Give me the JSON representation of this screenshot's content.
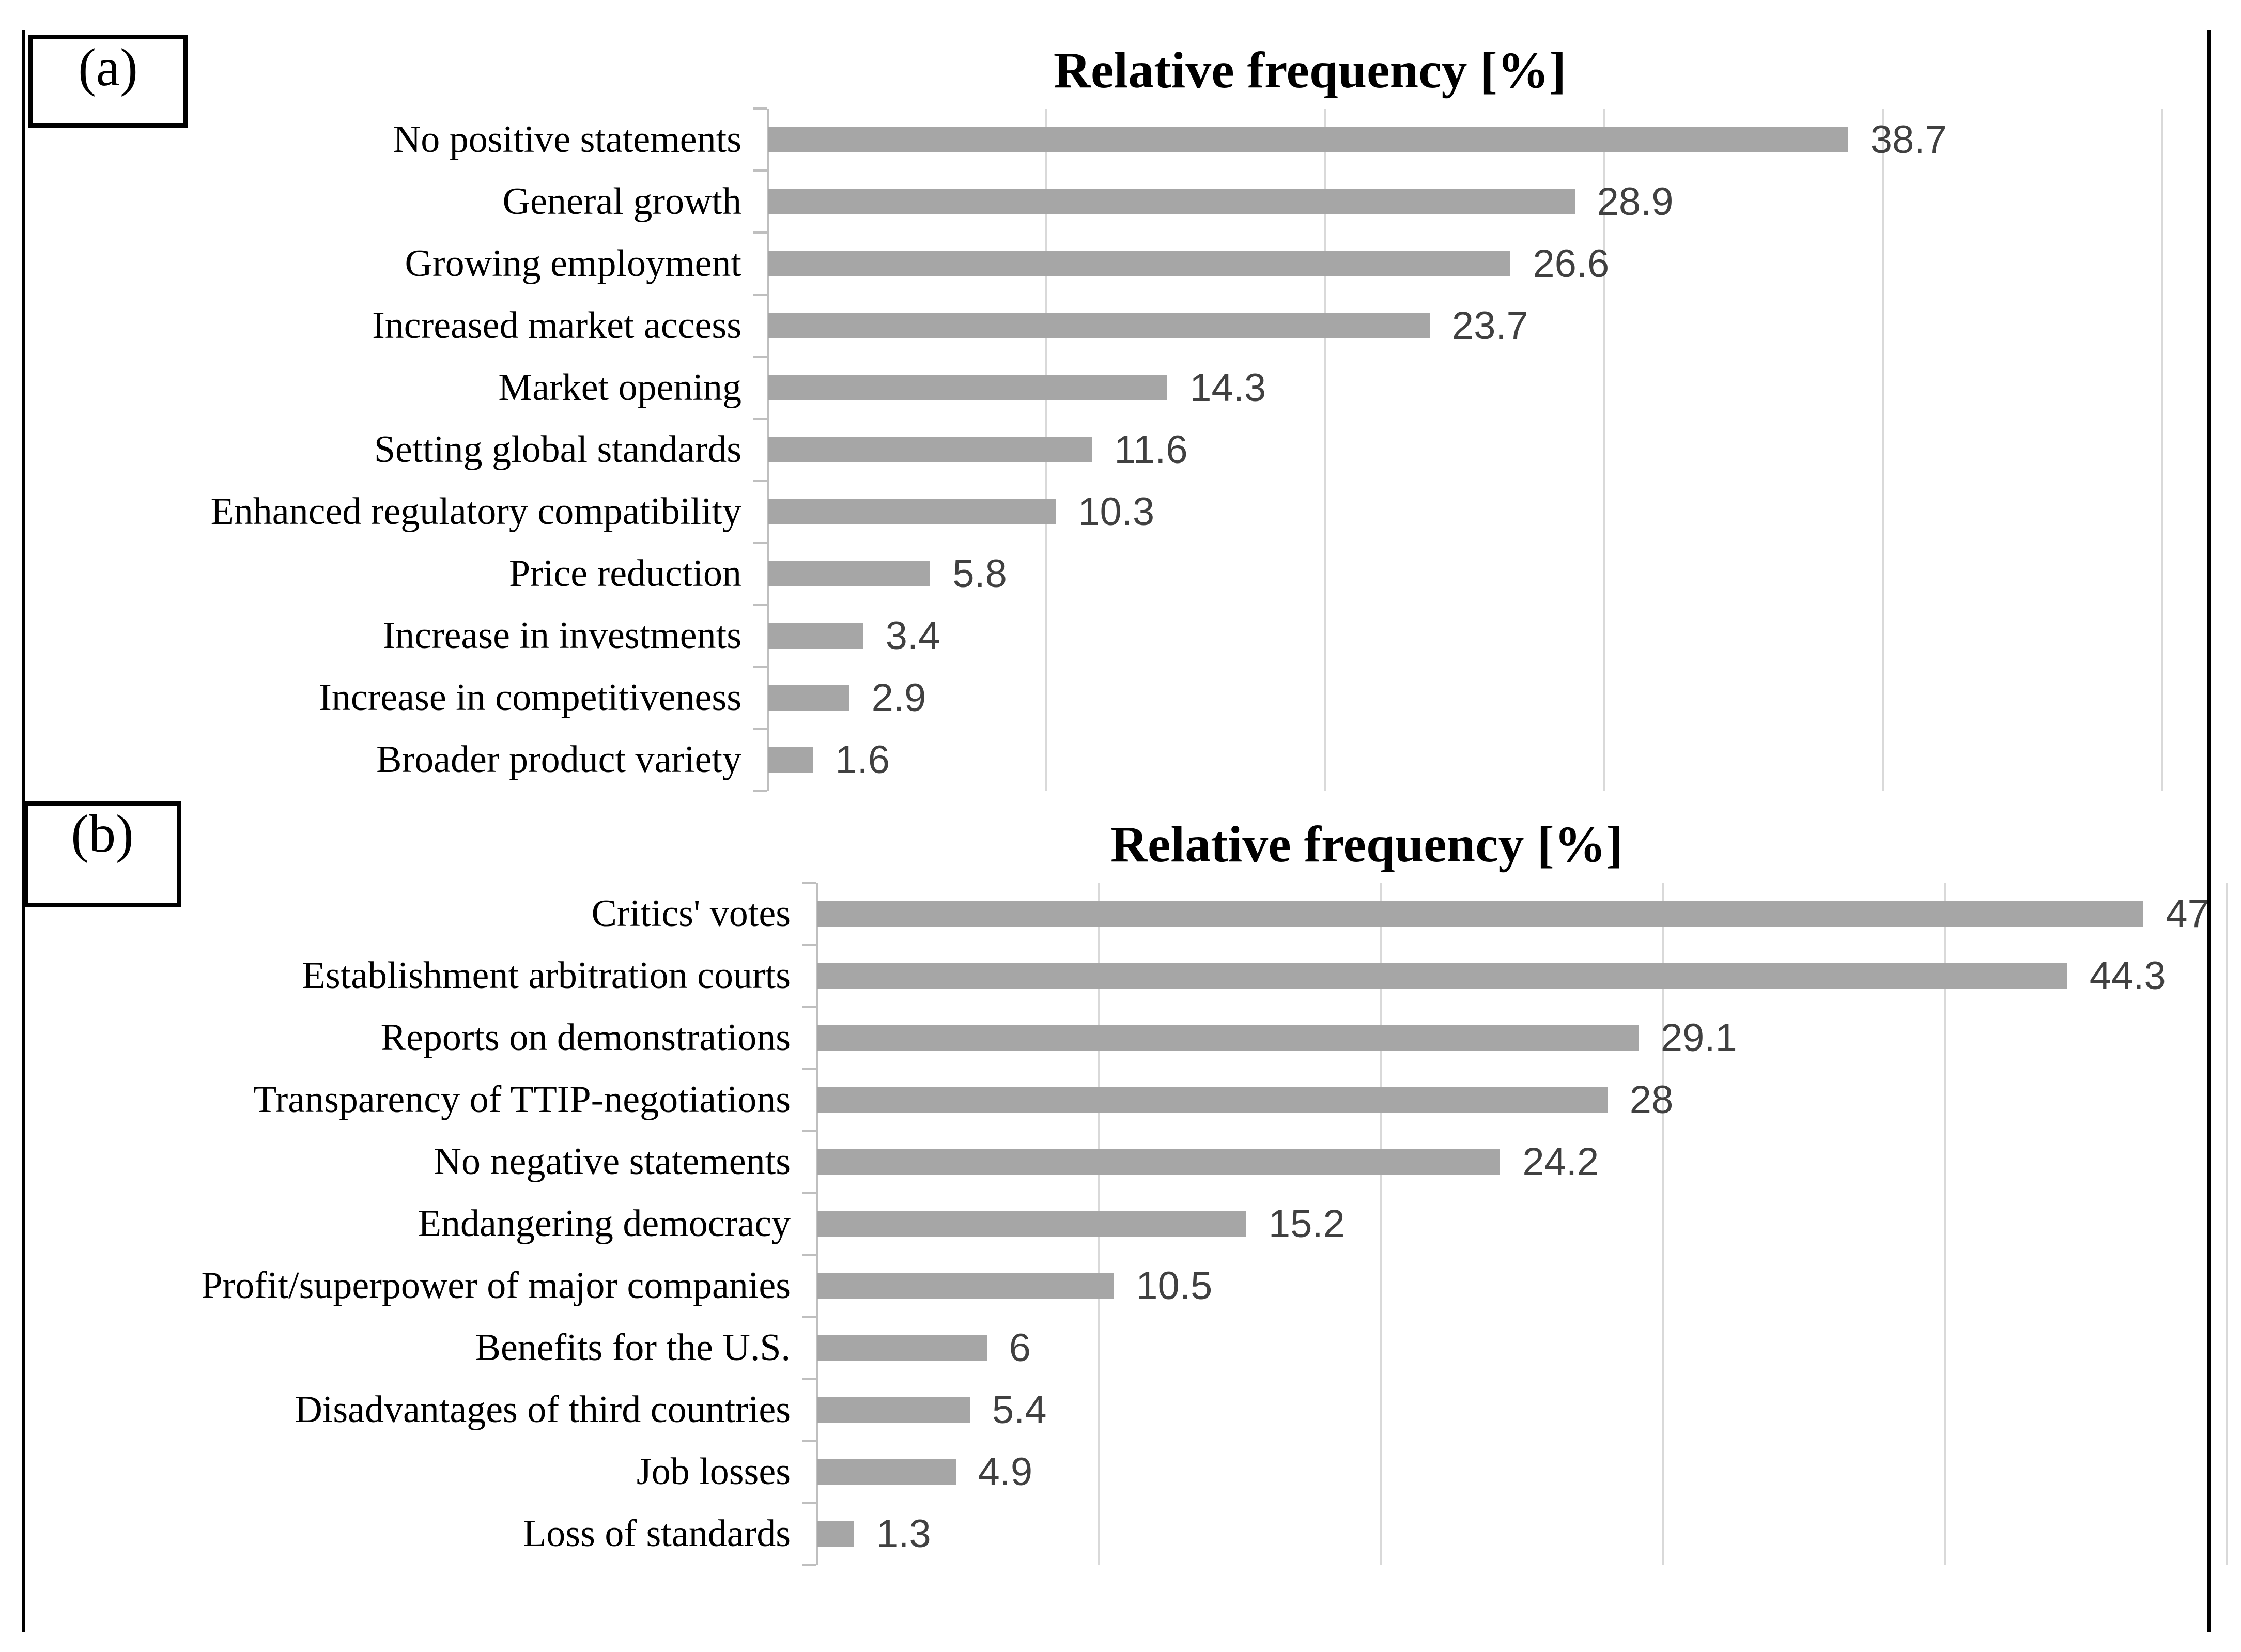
{
  "figure": {
    "panel_a_label": "(a)",
    "panel_b_label": "(b)",
    "background_color": "#ffffff",
    "border_color": "#000000"
  },
  "styles": {
    "bar_color": "#a6a6a6",
    "gridline_color": "#d9d9d9",
    "axis_color": "#bfbfbf",
    "value_label_color": "#404040",
    "category_label_color": "#000000"
  },
  "chart_data": [
    {
      "type": "bar",
      "orientation": "horizontal",
      "title": "Relative frequency [%]",
      "categories": [
        "No positive statements",
        "General growth",
        "Growing employment",
        "Increased market access",
        "Market opening",
        "Setting global standards",
        "Enhanced regulatory compatibility",
        "Price reduction",
        "Increase in investments",
        "Increase in competitiveness",
        "Broader product variety"
      ],
      "values": [
        38.7,
        28.9,
        26.6,
        23.7,
        14.3,
        11.6,
        10.3,
        5.8,
        3.4,
        2.9,
        1.6
      ],
      "value_labels": [
        "38.7",
        "28.9",
        "26.6",
        "23.7",
        "14.3",
        "11.6",
        "10.3",
        "5.8",
        "3.4",
        "2.9",
        "1.6"
      ],
      "xlabel": "",
      "ylabel": "",
      "xlim": [
        0,
        50
      ],
      "gridline_interval": 10,
      "grid": true,
      "value_axis_tick_labels_shown": false,
      "data_labels_shown": true,
      "legend": "none"
    },
    {
      "type": "bar",
      "orientation": "horizontal",
      "title": "Relative frequency [%]",
      "categories": [
        "Critics' votes",
        "Establishment arbitration courts",
        "Reports on demonstrations",
        "Transparency of TTIP-negotiations",
        "No negative statements",
        "Endangering democracy",
        "Profit/superpower of major companies",
        "Benefits for the U.S.",
        "Disadvantages of third countries",
        "Job losses",
        "Loss of standards"
      ],
      "values": [
        47,
        44.3,
        29.1,
        28,
        24.2,
        15.2,
        10.5,
        6,
        5.4,
        4.9,
        1.3
      ],
      "value_labels": [
        "47",
        "44.3",
        "29.1",
        "28",
        "24.2",
        "15.2",
        "10.5",
        "6",
        "5.4",
        "4.9",
        "1.3"
      ],
      "xlabel": "",
      "ylabel": "",
      "xlim": [
        0,
        50
      ],
      "gridline_interval": 10,
      "grid": true,
      "value_axis_tick_labels_shown": false,
      "data_labels_shown": true,
      "legend": "none"
    }
  ]
}
